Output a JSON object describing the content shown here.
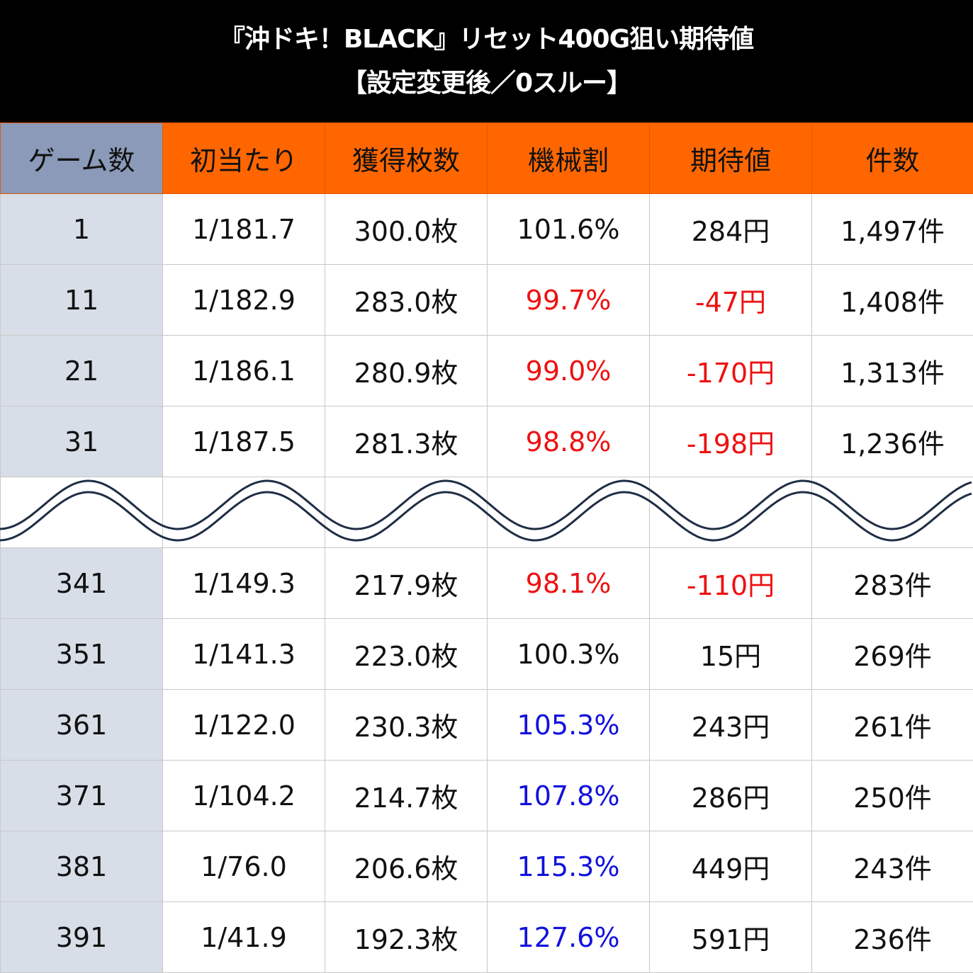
{
  "title": {
    "line1": "『沖ドキ！BLACK』リセット400G狙い期待値",
    "line2": "【設定変更後／0スルー】"
  },
  "chart_data": {
    "type": "table",
    "columns": [
      "ゲーム数",
      "初当たり",
      "獲得枚数",
      "機械割",
      "期待値",
      "件数"
    ],
    "rows": [
      {
        "games": "1",
        "hit": "1/181.7",
        "coins": "300.0枚",
        "payout": "101.6%",
        "ev": "284円",
        "count": "1,497件",
        "tone": ""
      },
      {
        "games": "11",
        "hit": "1/182.9",
        "coins": "283.0枚",
        "payout": "99.7%",
        "ev": "-47円",
        "count": "1,408件",
        "tone": "red"
      },
      {
        "games": "21",
        "hit": "1/186.1",
        "coins": "280.9枚",
        "payout": "99.0%",
        "ev": "-170円",
        "count": "1,313件",
        "tone": "red"
      },
      {
        "games": "31",
        "hit": "1/187.5",
        "coins": "281.3枚",
        "payout": "98.8%",
        "ev": "-198円",
        "count": "1,236件",
        "tone": "red"
      },
      {
        "games": "341",
        "hit": "1/149.3",
        "coins": "217.9枚",
        "payout": "98.1%",
        "ev": "-110円",
        "count": "283件",
        "tone": "red"
      },
      {
        "games": "351",
        "hit": "1/141.3",
        "coins": "223.0枚",
        "payout": "100.3%",
        "ev": "15円",
        "count": "269件",
        "tone": ""
      },
      {
        "games": "361",
        "hit": "1/122.0",
        "coins": "230.3枚",
        "payout": "105.3%",
        "ev": "243円",
        "count": "261件",
        "tone": "blue"
      },
      {
        "games": "371",
        "hit": "1/104.2",
        "coins": "214.7枚",
        "payout": "107.8%",
        "ev": "286円",
        "count": "250件",
        "tone": "blue"
      },
      {
        "games": "381",
        "hit": "1/76.0",
        "coins": "206.6枚",
        "payout": "115.3%",
        "ev": "449円",
        "count": "243件",
        "tone": "blue"
      },
      {
        "games": "391",
        "hit": "1/41.9",
        "coins": "192.3枚",
        "payout": "127.6%",
        "ev": "591円",
        "count": "236件",
        "tone": "blue"
      }
    ]
  },
  "colors": {
    "header": "#ff6600",
    "first_header": "#8a9ab8",
    "first_column": "#d8dee8",
    "negative": "#ee1111",
    "positive": "#1111dd",
    "wave": "#1f2d45"
  }
}
